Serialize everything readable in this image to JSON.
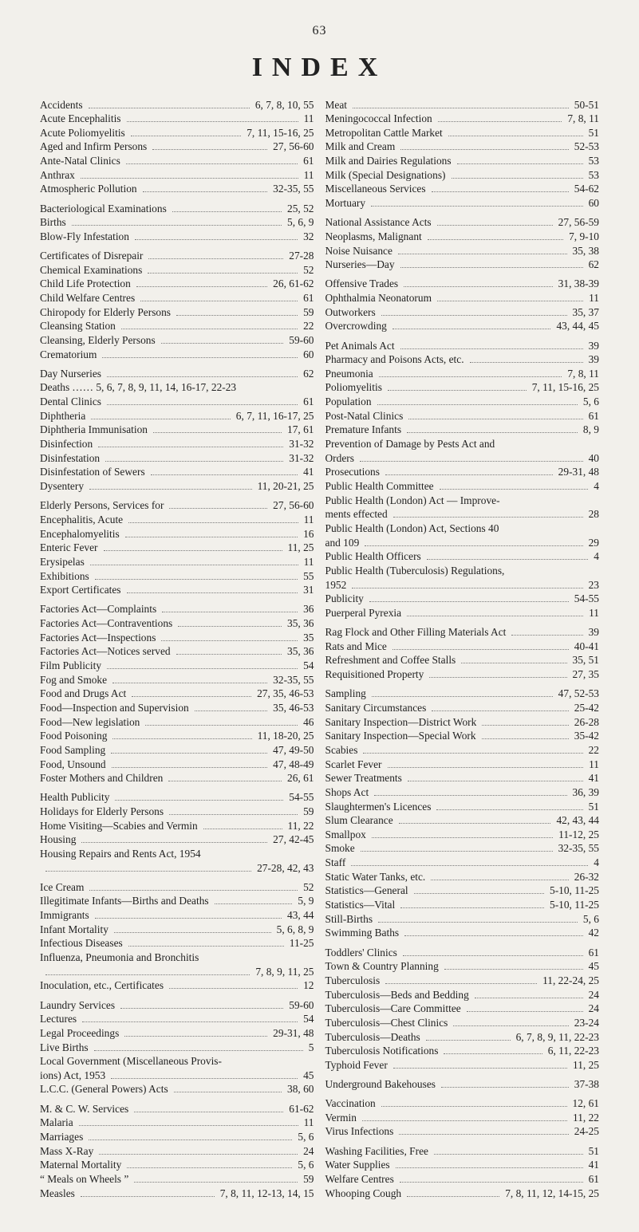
{
  "page_number": "63",
  "title": "INDEX",
  "left_column": [
    {
      "term": "Accidents",
      "pages": "6, 7, 8, 10, 55",
      "gap": false
    },
    {
      "term": "Acute Encephalitis",
      "pages": "11",
      "gap": false
    },
    {
      "term": "Acute Poliomyelitis",
      "pages": "7, 11, 15-16, 25",
      "gap": false
    },
    {
      "term": "Aged and Infirm Persons",
      "pages": "27, 56-60",
      "gap": false
    },
    {
      "term": "Ante-Natal Clinics",
      "pages": "61",
      "gap": false
    },
    {
      "term": "Anthrax",
      "pages": "11",
      "gap": false
    },
    {
      "term": "Atmospheric Pollution",
      "pages": "32-35, 55",
      "gap": false
    },
    {
      "term": "Bacteriological Examinations",
      "pages": "25, 52",
      "gap": true
    },
    {
      "term": "Births",
      "pages": "5, 6, 9",
      "gap": false
    },
    {
      "term": "Blow-Fly Infestation",
      "pages": "32",
      "gap": false
    },
    {
      "term": "Certificates of Disrepair",
      "pages": "27-28",
      "gap": true
    },
    {
      "term": "Chemical Examinations",
      "pages": "52",
      "gap": false
    },
    {
      "term": "Child Life Protection",
      "pages": "26, 61-62",
      "gap": false
    },
    {
      "term": "Child Welfare Centres",
      "pages": "61",
      "gap": false
    },
    {
      "term": "Chiropody for Elderly Persons",
      "pages": "59",
      "gap": false
    },
    {
      "term": "Cleansing Station",
      "pages": "22",
      "gap": false
    },
    {
      "term": "Cleansing, Elderly Persons",
      "pages": "59-60",
      "gap": false
    },
    {
      "term": "Crematorium",
      "pages": "60",
      "gap": false
    },
    {
      "term": "Day Nurseries",
      "pages": "62",
      "gap": true
    },
    {
      "term": "Deaths",
      "supplement": " …… 5, 6, 7, 8, 9, 11, 14, 16-17, 22-23",
      "pages": "",
      "gap": false
    },
    {
      "term": "Dental Clinics",
      "pages": "61",
      "gap": false
    },
    {
      "term": "Diphtheria",
      "pages": "6, 7, 11, 16-17, 25",
      "gap": false
    },
    {
      "term": "Diphtheria Immunisation",
      "pages": "17, 61",
      "gap": false
    },
    {
      "term": "Disinfection",
      "pages": "31-32",
      "gap": false
    },
    {
      "term": "Disinfestation",
      "pages": "31-32",
      "gap": false
    },
    {
      "term": "Disinfestation of Sewers",
      "pages": "41",
      "gap": false
    },
    {
      "term": "Dysentery",
      "pages": "11, 20-21, 25",
      "gap": false
    },
    {
      "term": "Elderly Persons, Services for",
      "pages": "27, 56-60",
      "gap": true
    },
    {
      "term": "Encephalitis, Acute",
      "pages": "11",
      "gap": false
    },
    {
      "term": "Encephalomyelitis",
      "pages": "16",
      "gap": false
    },
    {
      "term": "Enteric Fever",
      "pages": "11, 25",
      "gap": false
    },
    {
      "term": "Erysipelas",
      "pages": "11",
      "gap": false
    },
    {
      "term": "Exhibitions",
      "pages": "55",
      "gap": false
    },
    {
      "term": "Export Certificates",
      "pages": "31",
      "gap": false
    },
    {
      "term": "Factories Act—Complaints",
      "pages": "36",
      "gap": true
    },
    {
      "term": "Factories Act—Contraventions",
      "pages": "35, 36",
      "gap": false
    },
    {
      "term": "Factories Act—Inspections",
      "pages": "35",
      "gap": false
    },
    {
      "term": "Factories Act—Notices served",
      "pages": "35, 36",
      "gap": false
    },
    {
      "term": "Film  Publicity",
      "pages": "54",
      "gap": false
    },
    {
      "term": "Fog and Smoke",
      "pages": "32-35, 55",
      "gap": false
    },
    {
      "term": "Food and Drugs Act",
      "pages": "27, 35, 46-53",
      "gap": false
    },
    {
      "term": "Food—Inspection and Supervision",
      "pages": "35, 46-53",
      "gap": false
    },
    {
      "term": "Food—New legislation",
      "pages": "46",
      "gap": false
    },
    {
      "term": "Food Poisoning",
      "pages": "11, 18-20, 25",
      "gap": false
    },
    {
      "term": "Food Sampling",
      "pages": "47, 49-50",
      "gap": false
    },
    {
      "term": "Food, Unsound",
      "pages": "47, 48-49",
      "gap": false
    },
    {
      "term": "Foster Mothers and Children",
      "pages": "26, 61",
      "gap": false
    },
    {
      "term": "Health Publicity",
      "pages": "54-55",
      "gap": true
    },
    {
      "term": "Holidays for Elderly Persons",
      "pages": "59",
      "gap": false
    },
    {
      "term": "Home Visiting—Scabies and Vermin",
      "pages": "11, 22",
      "gap": false
    },
    {
      "term": "Housing",
      "pages": "27, 42-45",
      "gap": false
    },
    {
      "term": "Housing Repairs and Rents Act, 1954",
      "pages": "",
      "gap": false
    },
    {
      "term": "",
      "pages": "27-28, 42, 43",
      "gap": false
    },
    {
      "term": "Ice Cream",
      "pages": "52",
      "gap": true
    },
    {
      "term": "Illegitimate Infants—Births and Deaths",
      "pages": "5, 9",
      "gap": false
    },
    {
      "term": "Immigrants",
      "pages": "43, 44",
      "gap": false
    },
    {
      "term": "Infant Mortality",
      "pages": "5, 6, 8, 9",
      "gap": false
    },
    {
      "term": "Infectious Diseases",
      "pages": "11-25",
      "gap": false
    },
    {
      "term": "Influenza, Pneumonia and Bronchitis",
      "pages": "",
      "gap": false
    },
    {
      "term": "",
      "pages": "7, 8, 9, 11, 25",
      "gap": false
    },
    {
      "term": "Inoculation, etc., Certificates",
      "pages": "12",
      "gap": false
    },
    {
      "term": "Laundry Services",
      "pages": "59-60",
      "gap": true
    },
    {
      "term": "Lectures",
      "pages": "54",
      "gap": false
    },
    {
      "term": "Legal Proceedings",
      "pages": "29-31, 48",
      "gap": false
    },
    {
      "term": "Live Births",
      "pages": "5",
      "gap": false
    },
    {
      "term": "Local Government (Miscellaneous Provis-",
      "pages": "",
      "gap": false
    },
    {
      "term": "   ions) Act, 1953",
      "pages": "45",
      "gap": false
    },
    {
      "term": "L.C.C. (General Powers) Acts",
      "pages": "38, 60",
      "gap": false
    },
    {
      "term": "M. & C. W. Services",
      "pages": "61-62",
      "gap": true
    },
    {
      "term": "Malaria",
      "pages": "11",
      "gap": false
    },
    {
      "term": "Marriages",
      "pages": "5, 6",
      "gap": false
    },
    {
      "term": "Mass X-Ray",
      "pages": "24",
      "gap": false
    },
    {
      "term": "Maternal Mortality",
      "pages": "5, 6",
      "gap": false
    },
    {
      "term": "“ Meals on Wheels ”",
      "pages": "59",
      "gap": false
    },
    {
      "term": "Measles",
      "pages": "7, 8, 11, 12-13, 14, 15",
      "gap": false
    }
  ],
  "right_column": [
    {
      "term": "Meat",
      "pages": "50-51",
      "gap": false
    },
    {
      "term": "Meningococcal Infection",
      "pages": "7, 8, 11",
      "gap": false
    },
    {
      "term": "Metropolitan Cattle Market",
      "pages": "51",
      "gap": false
    },
    {
      "term": "Milk and Cream",
      "pages": "52-53",
      "gap": false
    },
    {
      "term": "Milk and Dairies Regulations",
      "pages": "53",
      "gap": false
    },
    {
      "term": "Milk (Special Designations)",
      "pages": "53",
      "gap": false
    },
    {
      "term": "Miscellaneous Services",
      "pages": "54-62",
      "gap": false
    },
    {
      "term": "Mortuary",
      "pages": "60",
      "gap": false
    },
    {
      "term": "National Assistance Acts",
      "pages": "27, 56-59",
      "gap": true
    },
    {
      "term": "Neoplasms, Malignant",
      "pages": "7, 9-10",
      "gap": false
    },
    {
      "term": "Noise Nuisance",
      "pages": "35, 38",
      "gap": false
    },
    {
      "term": "Nurseries—Day",
      "pages": "62",
      "gap": false
    },
    {
      "term": "Offensive Trades",
      "pages": "31, 38-39",
      "gap": true
    },
    {
      "term": "Ophthalmia Neonatorum",
      "pages": "11",
      "gap": false
    },
    {
      "term": "Outworkers",
      "pages": "35, 37",
      "gap": false
    },
    {
      "term": "Overcrowding",
      "pages": "43, 44, 45",
      "gap": false
    },
    {
      "term": "Pet Animals Act",
      "pages": "39",
      "gap": true
    },
    {
      "term": "Pharmacy and Poisons Acts, etc.",
      "pages": "39",
      "gap": false
    },
    {
      "term": "Pneumonia",
      "pages": "7, 8, 11",
      "gap": false
    },
    {
      "term": "Poliomyelitis",
      "pages": "7, 11, 15-16, 25",
      "gap": false
    },
    {
      "term": "Population",
      "pages": "5, 6",
      "gap": false
    },
    {
      "term": "Post-Natal Clinics",
      "pages": "61",
      "gap": false
    },
    {
      "term": "Premature Infants",
      "pages": "8, 9",
      "gap": false
    },
    {
      "term": "Prevention of Damage by Pests Act and",
      "pages": "",
      "gap": false
    },
    {
      "term": "   Orders",
      "pages": "40",
      "gap": false
    },
    {
      "term": "Prosecutions",
      "pages": "29-31, 48",
      "gap": false
    },
    {
      "term": "Public Health Committee",
      "pages": "4",
      "gap": false
    },
    {
      "term": "Public Health (London) Act — Improve-",
      "pages": "",
      "gap": false
    },
    {
      "term": "   ments effected",
      "pages": "28",
      "gap": false
    },
    {
      "term": "Public Health (London) Act, Sections 40",
      "pages": "",
      "gap": false
    },
    {
      "term": "   and 109",
      "pages": "29",
      "gap": false
    },
    {
      "term": "Public Health Officers",
      "pages": "4",
      "gap": false
    },
    {
      "term": "Public Health (Tuberculosis) Regulations,",
      "pages": "",
      "gap": false
    },
    {
      "term": "   1952",
      "pages": "23",
      "gap": false
    },
    {
      "term": "Publicity",
      "pages": "54-55",
      "gap": false
    },
    {
      "term": "Puerperal Pyrexia",
      "pages": "11",
      "gap": false
    },
    {
      "term": "Rag Flock and Other Filling Materials Act",
      "pages": "39",
      "gap": true
    },
    {
      "term": "Rats and Mice",
      "pages": "40-41",
      "gap": false
    },
    {
      "term": "Refreshment and Coffee Stalls",
      "pages": "35, 51",
      "gap": false
    },
    {
      "term": "Requisitioned Property",
      "pages": "27, 35",
      "gap": false
    },
    {
      "term": "Sampling",
      "pages": "47, 52-53",
      "gap": true
    },
    {
      "term": "Sanitary Circumstances",
      "pages": "25-42",
      "gap": false
    },
    {
      "term": "Sanitary Inspection—District Work",
      "pages": "26-28",
      "gap": false
    },
    {
      "term": "Sanitary Inspection—Special Work",
      "pages": "35-42",
      "gap": false
    },
    {
      "term": "Scabies",
      "pages": "22",
      "gap": false
    },
    {
      "term": "Scarlet Fever",
      "pages": "11",
      "gap": false
    },
    {
      "term": "Sewer Treatments",
      "pages": "41",
      "gap": false
    },
    {
      "term": "Shops Act",
      "pages": "36, 39",
      "gap": false
    },
    {
      "term": "Slaughtermen's Licences",
      "pages": "51",
      "gap": false
    },
    {
      "term": "Slum Clearance",
      "pages": "42, 43, 44",
      "gap": false
    },
    {
      "term": "Smallpox",
      "pages": "11-12, 25",
      "gap": false
    },
    {
      "term": "Smoke",
      "pages": "32-35, 55",
      "gap": false
    },
    {
      "term": "Staff",
      "pages": "4",
      "gap": false
    },
    {
      "term": "Static Water Tanks, etc.",
      "pages": "26-32",
      "gap": false
    },
    {
      "term": "Statistics—General",
      "pages": "5-10, 11-25",
      "gap": false
    },
    {
      "term": "Statistics—Vital",
      "pages": "5-10, 11-25",
      "gap": false
    },
    {
      "term": "Still-Births",
      "pages": "5, 6",
      "gap": false
    },
    {
      "term": "Swimming Baths",
      "pages": "42",
      "gap": false
    },
    {
      "term": "Toddlers' Clinics",
      "pages": "61",
      "gap": true
    },
    {
      "term": "Town & Country Planning",
      "pages": "45",
      "gap": false
    },
    {
      "term": "Tuberculosis",
      "pages": "11, 22-24, 25",
      "gap": false
    },
    {
      "term": "Tuberculosis—Beds and Bedding",
      "pages": "24",
      "gap": false
    },
    {
      "term": "Tuberculosis—Care Committee",
      "pages": "24",
      "gap": false
    },
    {
      "term": "Tuberculosis—Chest Clinics",
      "pages": "23-24",
      "gap": false
    },
    {
      "term": "Tuberculosis—Deaths",
      "pages": "6, 7, 8, 9, 11, 22-23",
      "gap": false
    },
    {
      "term": "Tuberculosis Notifications",
      "pages": "6, 11, 22-23",
      "gap": false
    },
    {
      "term": "Typhoid Fever",
      "pages": "11, 25",
      "gap": false
    },
    {
      "term": "Underground Bakehouses",
      "pages": "37-38",
      "gap": true
    },
    {
      "term": "Vaccination",
      "pages": "12, 61",
      "gap": true
    },
    {
      "term": "Vermin",
      "pages": "11, 22",
      "gap": false
    },
    {
      "term": "Virus Infections",
      "pages": "24-25",
      "gap": false
    },
    {
      "term": "Washing Facilities, Free",
      "pages": "51",
      "gap": true
    },
    {
      "term": "Water Supplies",
      "pages": "41",
      "gap": false
    },
    {
      "term": "Welfare Centres",
      "pages": "61",
      "gap": false
    },
    {
      "term": "Whooping Cough",
      "pages": "7, 8, 11, 12, 14-15, 25",
      "gap": false
    }
  ]
}
